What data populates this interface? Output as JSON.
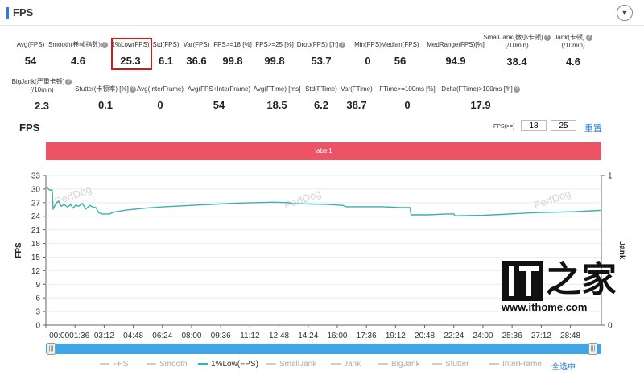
{
  "panel": {
    "title": "FPS",
    "collapse_icon": "▼"
  },
  "metrics_row1": [
    {
      "label": "Avg(FPS)",
      "value": "54",
      "help": false
    },
    {
      "label": "Smooth(卷帧指数)",
      "value": "4.6",
      "help": true
    },
    {
      "label": "1%Low(FPS)",
      "value": "25.3",
      "help": false
    },
    {
      "label": "Std(FPS)",
      "value": "6.1",
      "help": false
    },
    {
      "label": "Var(FPS)",
      "value": "36.6",
      "help": false
    },
    {
      "label": "FPS>=18 [%]",
      "value": "99.8",
      "help": false
    },
    {
      "label": "FPS>=25 [%]",
      "value": "99.8",
      "help": false
    },
    {
      "label": "Drop(FPS) [/h]",
      "value": "53.7",
      "help": true
    },
    {
      "label": "Min(FPS)",
      "value": "0",
      "help": false
    },
    {
      "label": "Median(FPS)",
      "value": "56",
      "help": false
    },
    {
      "label": "MedRange(FPS)[%]",
      "value": "94.9",
      "help": false
    },
    {
      "label": "SmallJank(微小卡顿)",
      "label2": "(/10min)",
      "value": "38.4",
      "help": true
    },
    {
      "label": "Jank(卡顿)",
      "label2": "(/10min)",
      "value": "4.6",
      "help": true
    }
  ],
  "metrics_row2": [
    {
      "label": "BigJank(严重卡顿)",
      "label2": "(/10min)",
      "value": "2.3",
      "help": true
    },
    {
      "label": "Stutter(卡顿率) [%]",
      "value": "0.1",
      "help": true
    },
    {
      "label": "Avg(InterFrame)",
      "value": "0",
      "help": false
    },
    {
      "label": "Avg(FPS+InterFrame)",
      "value": "54",
      "help": false
    },
    {
      "label": "Avg(FTime) [ms]",
      "value": "18.5",
      "help": false
    },
    {
      "label": "Std(FTime)",
      "value": "6.2",
      "help": false
    },
    {
      "label": "Var(FTime)",
      "value": "38.7",
      "help": false
    },
    {
      "label": "FTime>=100ms [%]",
      "value": "0",
      "help": false
    },
    {
      "label": "Delta(FTime)>100ms [/h]",
      "value": "17.9",
      "help": true
    }
  ],
  "chart_header": {
    "title": "FPS",
    "filter_label": "FPS(>=)",
    "filter_value_1": "18",
    "filter_value_2": "25",
    "reset_label": "重置"
  },
  "label_band": {
    "text": "label1",
    "color": "#ec5466"
  },
  "legend": [
    {
      "name": "FPS",
      "active": false
    },
    {
      "name": "Smooth",
      "active": false
    },
    {
      "name": "1%Low(FPS)",
      "active": true
    },
    {
      "name": "SmallJank",
      "active": false
    },
    {
      "name": "Jank",
      "active": false
    },
    {
      "name": "BigJank",
      "active": false
    },
    {
      "name": "Stutter",
      "active": false
    },
    {
      "name": "InterFrame",
      "active": false
    }
  ],
  "legend_select_all": "全选中",
  "slider": {
    "start": 0,
    "end": 1,
    "handle_glyph": "|||"
  },
  "watermark": {
    "text": "PerfDog"
  },
  "logo": {
    "text": "IT之家",
    "glyph": "之家",
    "url": "www.ithome.com"
  },
  "colors": {
    "accent": "#2b7de1",
    "series": "#3ab1ad",
    "highlight": "#c81e1e"
  },
  "chart_data": {
    "type": "line",
    "title": "",
    "xlabel": "",
    "ylabel": "FPS",
    "y2label": "Jank",
    "x_unit": "minutes",
    "xlim": [
      0,
      30.5
    ],
    "ylim": [
      0,
      33
    ],
    "y2lim": [
      0,
      1
    ],
    "y_ticks": [
      0,
      3,
      6,
      9,
      12,
      15,
      18,
      21,
      24,
      27,
      30,
      33
    ],
    "y2_ticks": [
      0,
      1
    ],
    "x_tick_labels": [
      "00:0001:36",
      "03:12",
      "04:48",
      "06:24",
      "08:00",
      "09:36",
      "11:12",
      "12:48",
      "14:24",
      "16:00",
      "17:36",
      "19:12",
      "20:48",
      "22:24",
      "24:00",
      "25:36",
      "27:12",
      "28:48"
    ],
    "x_tick_values": [
      1.6,
      3.2,
      4.8,
      6.4,
      8.0,
      9.6,
      11.2,
      12.8,
      14.4,
      16.0,
      17.6,
      19.2,
      20.8,
      22.4,
      24.0,
      25.6,
      27.2,
      28.8
    ],
    "grid": true,
    "legend_placement": "bottom",
    "series": [
      {
        "name": "1%Low(FPS)",
        "color": "#3ab1ad",
        "points": [
          [
            0.0,
            30.5
          ],
          [
            0.2,
            29.8
          ],
          [
            0.35,
            29.8
          ],
          [
            0.4,
            25.5
          ],
          [
            0.55,
            26.8
          ],
          [
            0.7,
            27.3
          ],
          [
            0.85,
            26.2
          ],
          [
            1.0,
            26.6
          ],
          [
            1.2,
            26.0
          ],
          [
            1.35,
            26.6
          ],
          [
            1.5,
            25.8
          ],
          [
            1.65,
            26.5
          ],
          [
            1.8,
            26.2
          ],
          [
            2.0,
            26.8
          ],
          [
            2.2,
            25.6
          ],
          [
            2.4,
            26.4
          ],
          [
            2.6,
            26.0
          ],
          [
            2.75,
            25.9
          ],
          [
            2.9,
            24.8
          ],
          [
            3.1,
            24.5
          ],
          [
            3.5,
            24.5
          ],
          [
            3.7,
            24.9
          ],
          [
            4.5,
            25.4
          ],
          [
            5.5,
            25.8
          ],
          [
            6.5,
            26.1
          ],
          [
            7.5,
            26.3
          ],
          [
            8.5,
            26.5
          ],
          [
            9.5,
            26.7
          ],
          [
            10.5,
            26.9
          ],
          [
            11.5,
            27.0
          ],
          [
            12.5,
            27.1
          ],
          [
            13.3,
            27.0
          ],
          [
            13.5,
            26.8
          ],
          [
            14.5,
            26.7
          ],
          [
            15.5,
            26.6
          ],
          [
            16.3,
            26.4
          ],
          [
            16.5,
            26.1
          ],
          [
            17.5,
            26.1
          ],
          [
            18.5,
            26.1
          ],
          [
            19.5,
            25.9
          ],
          [
            20.0,
            25.9
          ],
          [
            20.05,
            24.3
          ],
          [
            21.0,
            24.3
          ],
          [
            22.0,
            24.5
          ],
          [
            22.4,
            24.5
          ],
          [
            22.45,
            24.1
          ],
          [
            24.0,
            24.2
          ],
          [
            25.0,
            24.4
          ],
          [
            26.0,
            24.6
          ],
          [
            27.0,
            24.8
          ],
          [
            28.0,
            24.9
          ],
          [
            29.0,
            25.0
          ],
          [
            30.0,
            25.2
          ],
          [
            30.5,
            25.3
          ]
        ]
      }
    ]
  }
}
